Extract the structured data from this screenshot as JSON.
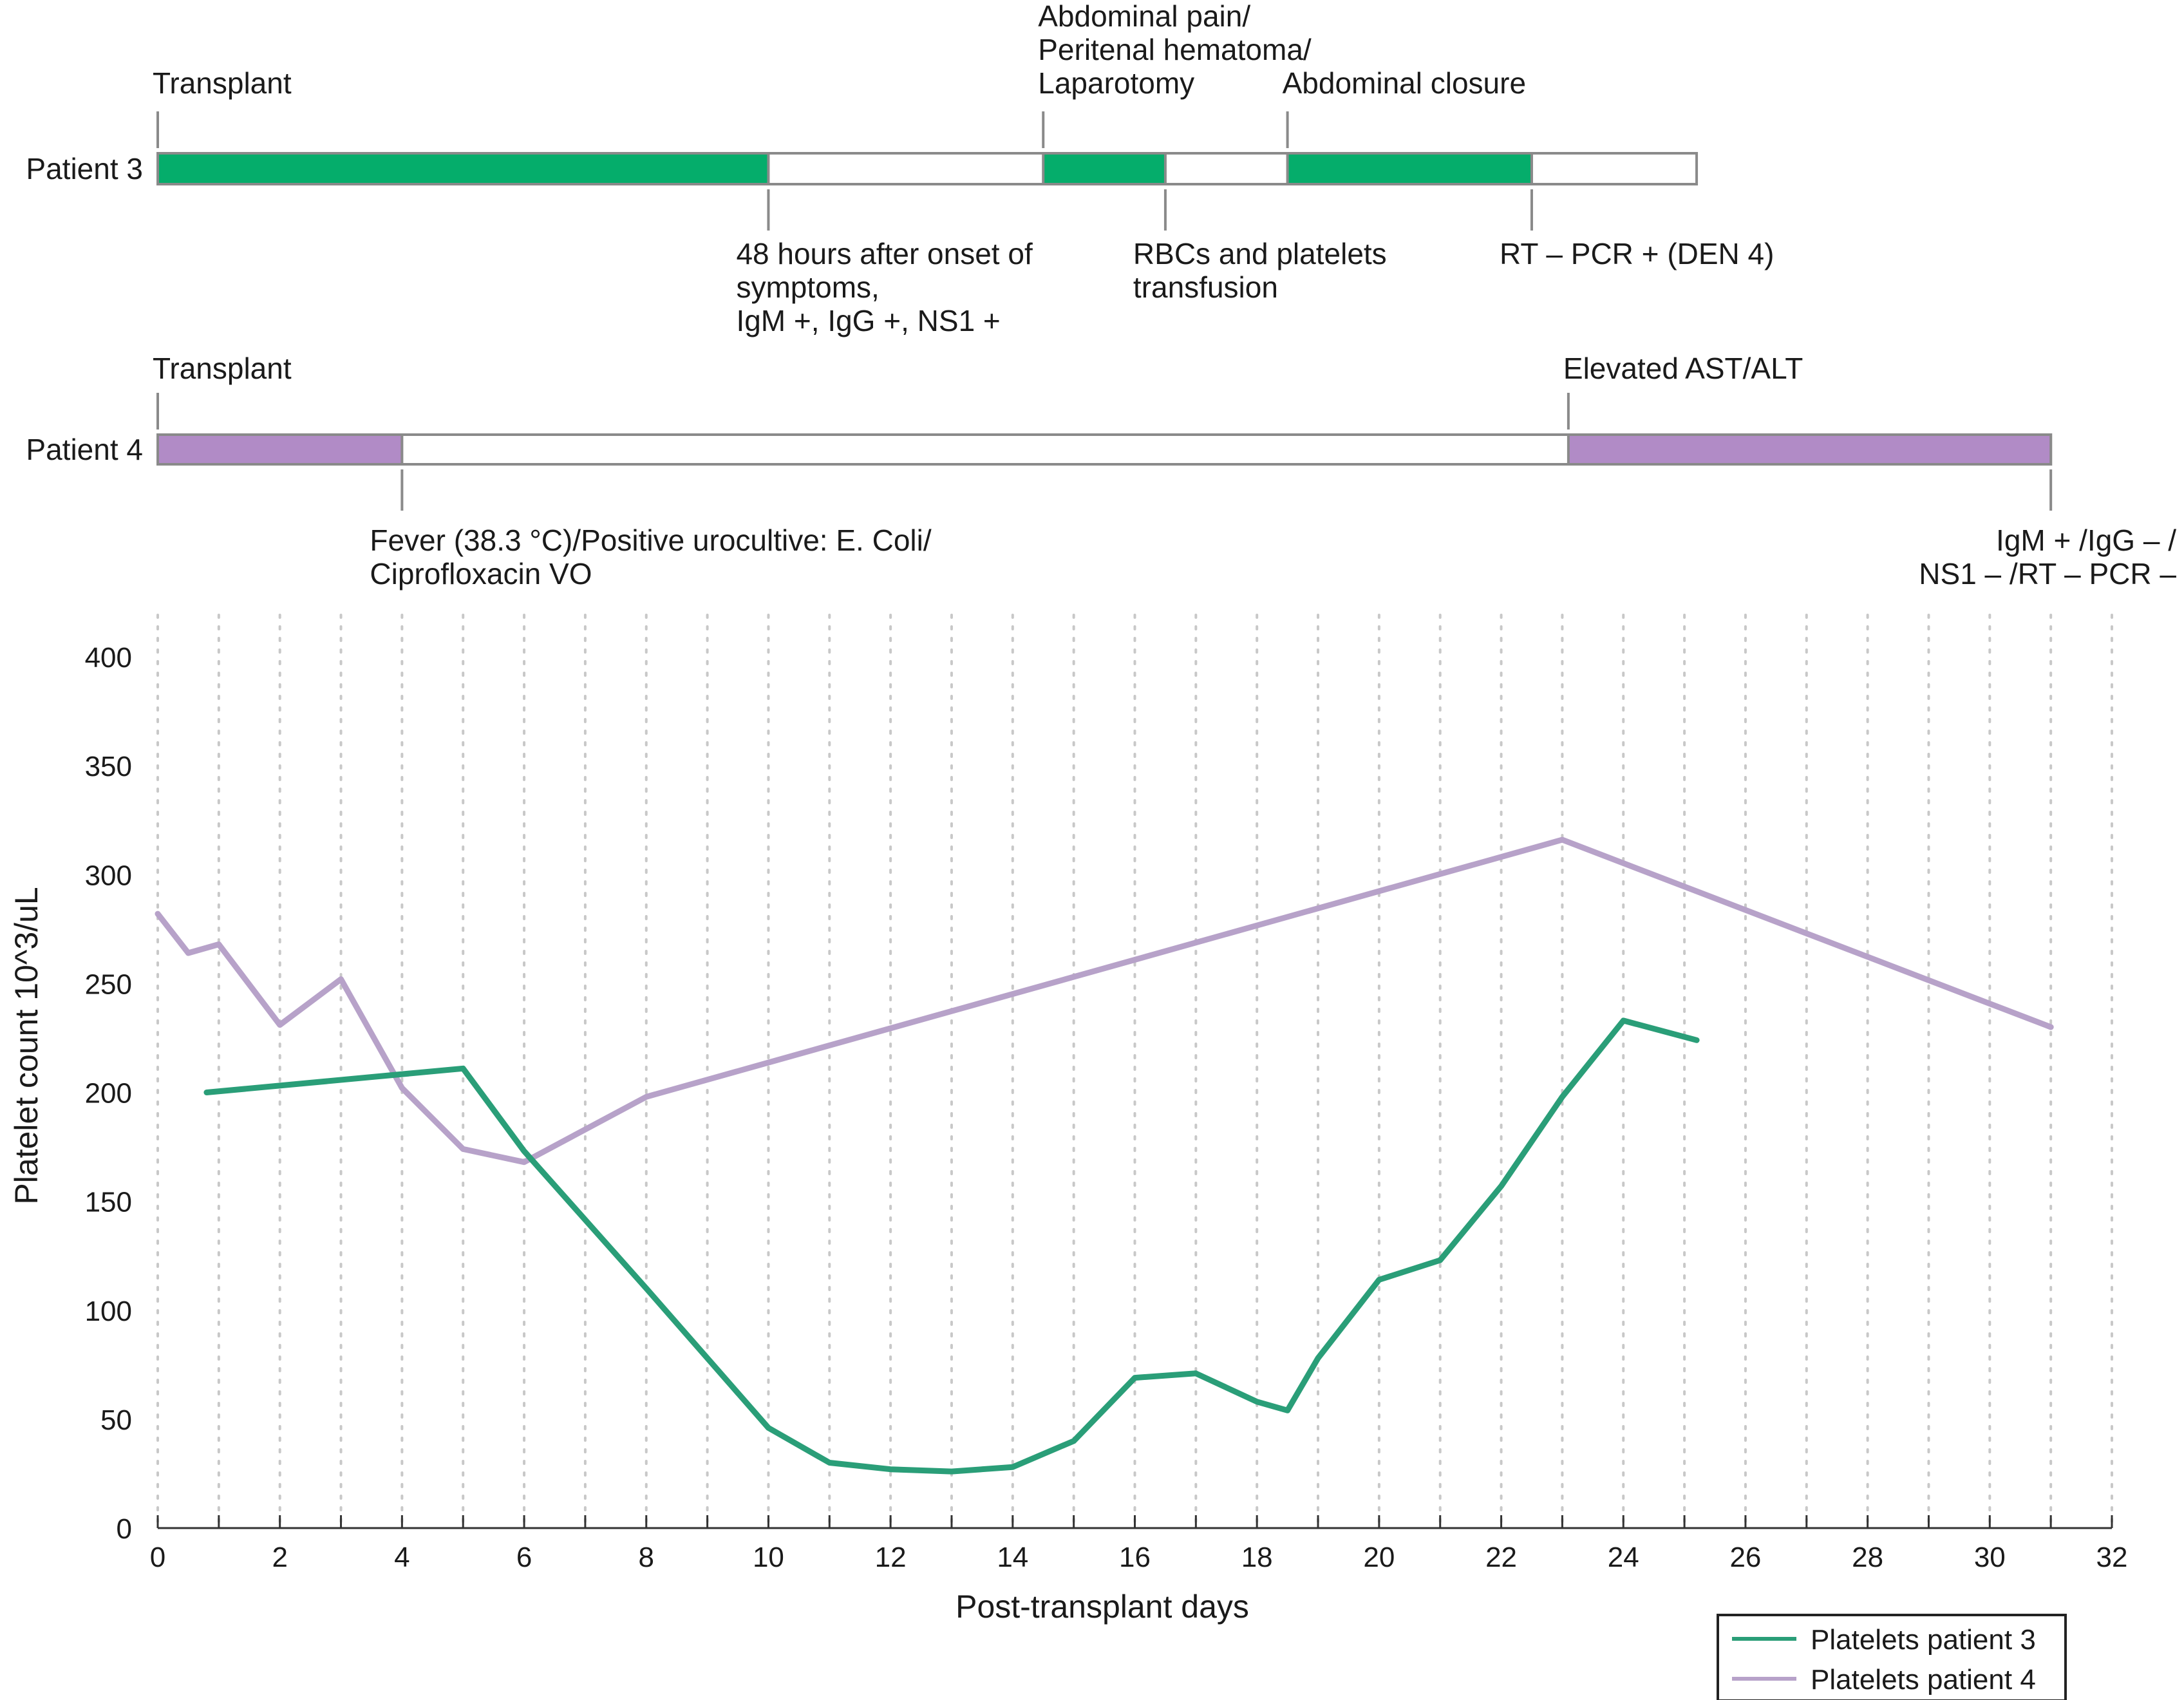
{
  "timeline": {
    "patient3": {
      "label": "Patient 3",
      "color": "#05ad6b",
      "bar_start_day": 0,
      "bar_end_day": 25.2,
      "filled_segments": [
        [
          0,
          10
        ],
        [
          14.5,
          16.5
        ],
        [
          18.5,
          22.5
        ]
      ],
      "events_above": [
        {
          "day": 0,
          "lines": [
            "Transplant"
          ]
        },
        {
          "day": 14.5,
          "lines": [
            "Abdominal pain/",
            "Peritenal hematoma/",
            "Laparotomy"
          ]
        },
        {
          "day": 18.5,
          "lines": [
            "Abdominal closure"
          ]
        }
      ],
      "events_below": [
        {
          "day": 10,
          "lines": [
            "48 hours after onset of",
            "symptoms,",
            "IgM +, IgG +, NS1 +"
          ]
        },
        {
          "day": 16.5,
          "lines": [
            "RBCs and platelets",
            "transfusion"
          ]
        },
        {
          "day": 22.5,
          "lines": [
            "RT – PCR + (DEN 4)"
          ]
        }
      ]
    },
    "patient4": {
      "label": "Patient 4",
      "color": "#b18bc6",
      "bar_start_day": 0,
      "bar_end_day": 31,
      "filled_segments": [
        [
          0,
          4
        ],
        [
          23.1,
          31
        ]
      ],
      "events_above": [
        {
          "day": 0,
          "lines": [
            "Transplant"
          ]
        },
        {
          "day": 23.1,
          "lines": [
            "Elevated AST/ALT"
          ]
        }
      ],
      "events_below": [
        {
          "day": 4,
          "lines": [
            "Fever (38.3 °C)/Positive urocultive: E. Coli/",
            "Ciprofloxacin VO"
          ]
        },
        {
          "day": 31,
          "lines": [
            "IgM + /IgG – /",
            "NS1 – /RT – PCR –"
          ]
        }
      ]
    }
  },
  "chart_data": {
    "type": "line",
    "title": "",
    "xlabel": "Post-transplant days",
    "ylabel": "Platelet count 10^3/uL",
    "xlim": [
      0,
      32
    ],
    "ylim": [
      0,
      400
    ],
    "xticks": [
      0,
      2,
      4,
      6,
      8,
      10,
      12,
      14,
      16,
      18,
      20,
      22,
      24,
      26,
      28,
      30,
      32
    ],
    "yticks": [
      0,
      50,
      100,
      150,
      200,
      250,
      300,
      350,
      400
    ],
    "grid": "vertical dotted",
    "legend_position": "bottom-right",
    "series": [
      {
        "name": "Platelets patient 3",
        "color": "#2a9e78",
        "x": [
          0.8,
          5,
          6,
          8,
          10,
          11,
          12,
          13,
          14,
          15,
          16,
          17,
          18,
          18.5,
          19,
          20,
          21,
          22,
          23,
          24,
          25.2
        ],
        "y": [
          200,
          211,
          173,
          110,
          46,
          30,
          27,
          26,
          28,
          40,
          69,
          71,
          58,
          54,
          78,
          114,
          123,
          157,
          198,
          233,
          224
        ]
      },
      {
        "name": "Platelets patient 4",
        "color": "#b7a2c9",
        "x": [
          0,
          0.5,
          1,
          2,
          3,
          4,
          5,
          6,
          8,
          23,
          31
        ],
        "y": [
          282,
          264,
          268,
          231,
          252,
          202,
          174,
          168,
          198,
          316,
          230
        ]
      }
    ]
  }
}
